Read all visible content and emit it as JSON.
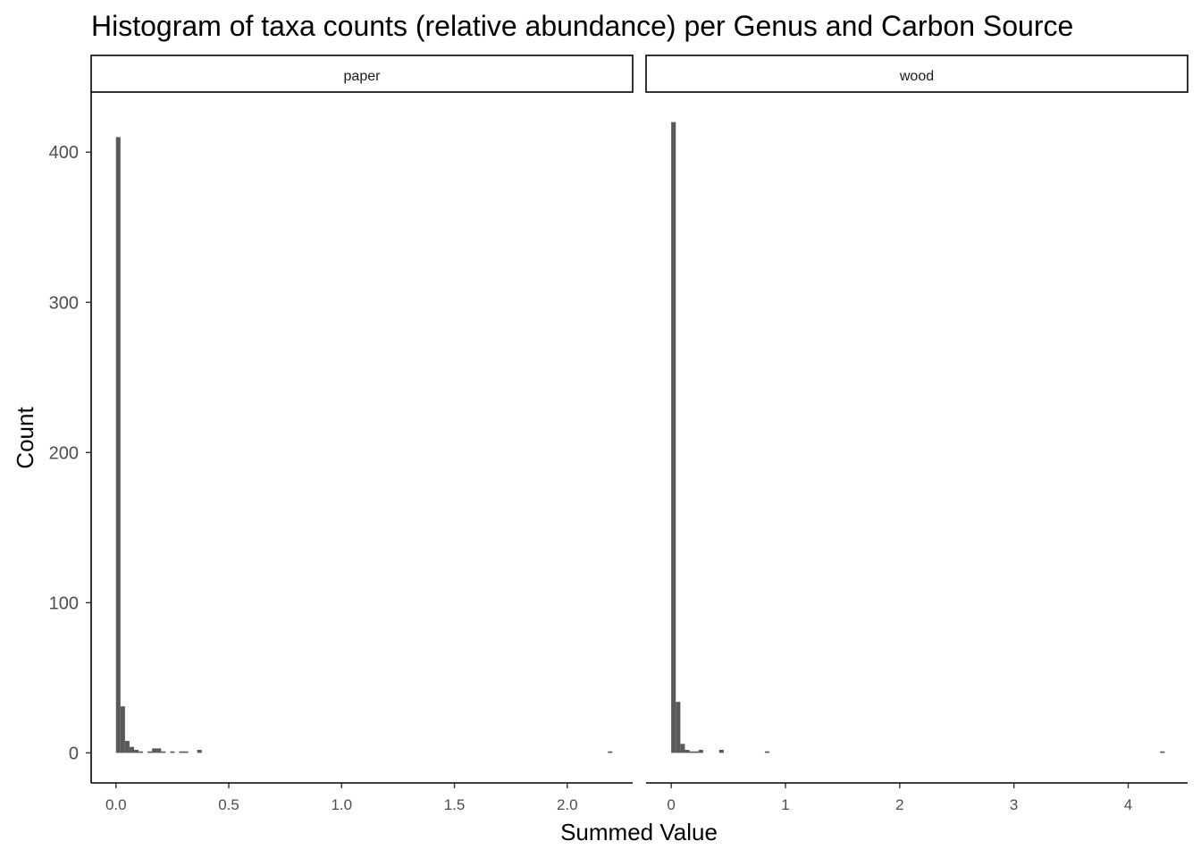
{
  "chart_data": {
    "type": "bar",
    "title": "Histogram of taxa counts (relative abundance) per Genus and Carbon Source",
    "xlabel": "Summed Value",
    "ylabel": "Count",
    "ylim": [
      -20,
      440
    ],
    "yticks": [
      0,
      100,
      200,
      300,
      400
    ],
    "grid": false,
    "bar_color": "#595959",
    "panels": [
      {
        "label": "paper",
        "xlim": [
          -0.11,
          2.29
        ],
        "xticks": [
          {
            "value": 0.0,
            "label": "0.0"
          },
          {
            "value": 0.5,
            "label": "0.5"
          },
          {
            "value": 1.0,
            "label": "1.0"
          },
          {
            "value": 1.5,
            "label": "1.5"
          },
          {
            "value": 2.0,
            "label": "2.0"
          }
        ],
        "binwidth": 0.02,
        "bins": [
          {
            "x": 0.0,
            "count": 410
          },
          {
            "x": 0.02,
            "count": 31
          },
          {
            "x": 0.04,
            "count": 8
          },
          {
            "x": 0.06,
            "count": 4
          },
          {
            "x": 0.08,
            "count": 2
          },
          {
            "x": 0.1,
            "count": 1
          },
          {
            "x": 0.14,
            "count": 1
          },
          {
            "x": 0.16,
            "count": 3
          },
          {
            "x": 0.18,
            "count": 3
          },
          {
            "x": 0.2,
            "count": 1
          },
          {
            "x": 0.24,
            "count": 1
          },
          {
            "x": 0.28,
            "count": 1
          },
          {
            "x": 0.3,
            "count": 1
          },
          {
            "x": 0.36,
            "count": 2
          },
          {
            "x": 2.18,
            "count": 1
          }
        ]
      },
      {
        "label": "wood",
        "xlim": [
          -0.22,
          4.52
        ],
        "xticks": [
          {
            "value": 0,
            "label": "0"
          },
          {
            "value": 1,
            "label": "1"
          },
          {
            "value": 2,
            "label": "2"
          },
          {
            "value": 3,
            "label": "3"
          },
          {
            "value": 4,
            "label": "4"
          }
        ],
        "binwidth": 0.04,
        "bins": [
          {
            "x": 0.0,
            "count": 420
          },
          {
            "x": 0.04,
            "count": 34
          },
          {
            "x": 0.08,
            "count": 6
          },
          {
            "x": 0.12,
            "count": 2
          },
          {
            "x": 0.16,
            "count": 1
          },
          {
            "x": 0.2,
            "count": 1
          },
          {
            "x": 0.24,
            "count": 2
          },
          {
            "x": 0.42,
            "count": 2
          },
          {
            "x": 0.82,
            "count": 1
          },
          {
            "x": 4.28,
            "count": 1
          }
        ]
      }
    ]
  }
}
